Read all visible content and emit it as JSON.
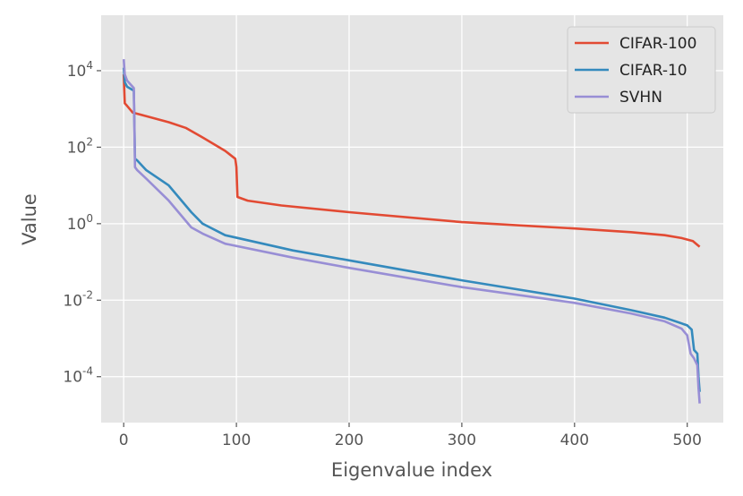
{
  "chart_data": {
    "type": "line",
    "title": "",
    "xlabel": "Eigenvalue index",
    "ylabel": "Value",
    "xlim": [
      -20,
      532
    ],
    "ylim_exp": [
      -5.2,
      5.45
    ],
    "y_scale": "log",
    "grid": true,
    "legend_position": "top-right",
    "x_ticks": [
      0,
      100,
      200,
      300,
      400,
      500
    ],
    "y_ticks": [
      {
        "value": 10000,
        "base": "10",
        "exp": "4"
      },
      {
        "value": 100,
        "base": "10",
        "exp": "2"
      },
      {
        "value": 1,
        "base": "10",
        "exp": "0"
      },
      {
        "value": 0.01,
        "base": "10",
        "exp": "-2"
      },
      {
        "value": 0.0001,
        "base": "10",
        "exp": "-4"
      }
    ],
    "series": [
      {
        "name": "CIFAR-100",
        "color": "#e24a33",
        "points": [
          [
            0,
            8000
          ],
          [
            1,
            1400
          ],
          [
            3,
            1200
          ],
          [
            8,
            800
          ],
          [
            20,
            650
          ],
          [
            40,
            450
          ],
          [
            55,
            320
          ],
          [
            70,
            180
          ],
          [
            90,
            80
          ],
          [
            99,
            50
          ],
          [
            100,
            30
          ],
          [
            101,
            5
          ],
          [
            110,
            4
          ],
          [
            140,
            3
          ],
          [
            200,
            2
          ],
          [
            300,
            1.1
          ],
          [
            400,
            0.75
          ],
          [
            450,
            0.6
          ],
          [
            480,
            0.5
          ],
          [
            495,
            0.42
          ],
          [
            505,
            0.35
          ],
          [
            509,
            0.28
          ],
          [
            511,
            0.25
          ]
        ]
      },
      {
        "name": "CIFAR-10",
        "color": "#348abd",
        "points": [
          [
            0,
            12000
          ],
          [
            1,
            5000
          ],
          [
            3,
            3800
          ],
          [
            9,
            3000
          ],
          [
            10,
            50
          ],
          [
            12,
            45
          ],
          [
            20,
            25
          ],
          [
            40,
            10
          ],
          [
            60,
            2
          ],
          [
            70,
            1
          ],
          [
            90,
            0.5
          ],
          [
            150,
            0.2
          ],
          [
            200,
            0.11
          ],
          [
            300,
            0.033
          ],
          [
            400,
            0.011
          ],
          [
            450,
            0.0055
          ],
          [
            480,
            0.0035
          ],
          [
            500,
            0.0022
          ],
          [
            504,
            0.0017
          ],
          [
            506,
            0.0005
          ],
          [
            509,
            0.0004
          ],
          [
            510,
            0.0001
          ],
          [
            511,
            4e-05
          ]
        ]
      },
      {
        "name": "SVHN",
        "color": "#988ed5",
        "points": [
          [
            0,
            20000
          ],
          [
            1,
            8000
          ],
          [
            3,
            5500
          ],
          [
            9,
            3500
          ],
          [
            10,
            30
          ],
          [
            12,
            25
          ],
          [
            20,
            15
          ],
          [
            40,
            4
          ],
          [
            60,
            0.8
          ],
          [
            70,
            0.55
          ],
          [
            90,
            0.3
          ],
          [
            150,
            0.13
          ],
          [
            200,
            0.07
          ],
          [
            300,
            0.022
          ],
          [
            400,
            0.0085
          ],
          [
            450,
            0.0045
          ],
          [
            480,
            0.0028
          ],
          [
            495,
            0.0018
          ],
          [
            500,
            0.0012
          ],
          [
            503,
            0.0004
          ],
          [
            506,
            0.0003
          ],
          [
            509,
            0.0002
          ],
          [
            510,
            5e-05
          ],
          [
            511,
            2e-05
          ]
        ]
      }
    ]
  }
}
